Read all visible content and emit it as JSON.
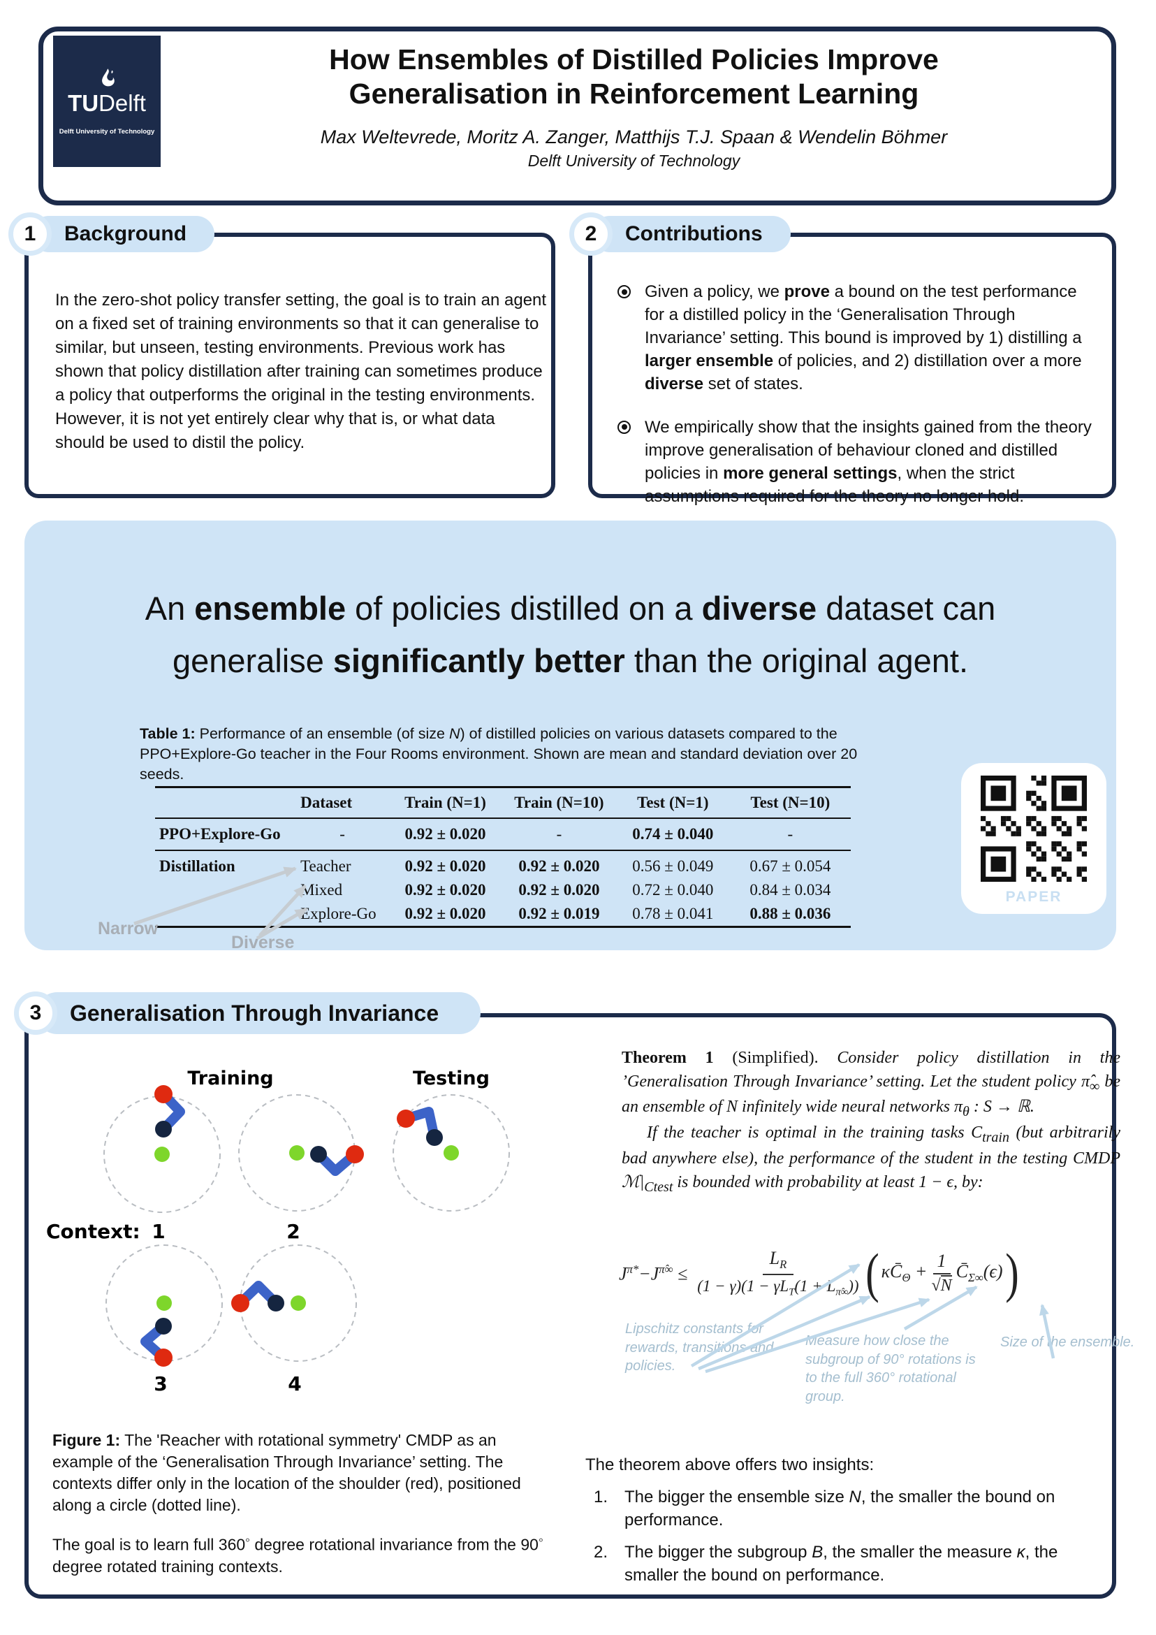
{
  "colors": {
    "brand_navy": "#1c2b4a",
    "highlight_blue": "#cfe4f6",
    "annotation_blue": "#a4becf",
    "arm_blue": "#3c63c8",
    "shoulder_red": "#df2a10",
    "tip_navy": "#152540",
    "target_green": "#7ed62b"
  },
  "icons": {
    "bullet": "fisheye-bullet",
    "logo_flame": "tu-delft-flame",
    "qr": "qr-code"
  },
  "header": {
    "logo_tu": "TU",
    "logo_delft": "Delft",
    "logo_sub": "Delft University of Technology",
    "title_line1": "How Ensembles of Distilled Policies Improve",
    "title_line2": "Generalisation in Reinforcement Learning",
    "authors": "Max Weltevrede, Moritz A. Zanger, Matthijs T.J. Spaan & Wendelin Böhmer",
    "affiliation": "Delft University of Technology"
  },
  "sections": {
    "background": {
      "number": "1",
      "title": "Background",
      "body": "In the zero-shot policy transfer setting, the goal is to train an agent on a fixed set of training environments so that it can generalise to similar, but unseen, testing environments. Previous work has shown that policy distillation after training can sometimes produce a policy that outperforms the original in the testing environments. However, it is not yet entirely clear why that is, or what data should be used to distil the policy."
    },
    "contributions": {
      "number": "2",
      "title": "Contributions",
      "bullets": [
        [
          {
            "t": "Given a policy, we "
          },
          {
            "t": "prove",
            "b": true
          },
          {
            "t": " a bound on the test performance for a distilled policy in the ‘Generalisation Through Invariance’ setting. This bound is improved by 1) distilling a "
          },
          {
            "t": "larger ensemble",
            "b": true
          },
          {
            "t": " of policies, and 2) distillation over a more "
          },
          {
            "t": "diverse",
            "b": true
          },
          {
            "t": " set of states."
          }
        ],
        [
          {
            "t": "We empirically show that the insights gained from the theory improve generalisation of behaviour cloned and distilled policies in "
          },
          {
            "t": "more general settings",
            "b": true
          },
          {
            "t": ", when the strict assumptions required for the theory no longer hold."
          }
        ]
      ]
    },
    "invariance": {
      "number": "3",
      "title": "Generalisation Through Invariance"
    }
  },
  "highlight": {
    "statement": [
      {
        "t": "An "
      },
      {
        "t": "ensemble",
        "b": true
      },
      {
        "t": " of policies distilled on a "
      },
      {
        "t": "diverse",
        "b": true
      },
      {
        "t": " dataset can"
      },
      {
        "br": true
      },
      {
        "t": "generalise "
      },
      {
        "t": "significantly better",
        "b": true
      },
      {
        "t": " than the original agent."
      }
    ],
    "table": {
      "caption": [
        {
          "t": "Table 1:",
          "b": true
        },
        {
          "t": " Performance of an ensemble (of size "
        },
        {
          "t": "N",
          "i": true
        },
        {
          "t": ") of distilled policies on various datasets compared to the PPO+Explore-Go teacher in the Four Rooms environment. Shown are mean and standard deviation over 20 seeds."
        }
      ],
      "headers": [
        "",
        "Dataset",
        "Train (N=1)",
        "Train (N=10)",
        "Test (N=1)",
        "Test (N=10)"
      ],
      "rows": [
        {
          "group": "PPO+Explore-Go",
          "dataset": "-",
          "c1": "0.92 ± 0.020",
          "c2": "-",
          "c3": "0.74 ± 0.040",
          "c4": "-"
        },
        {
          "group": "Distillation",
          "dataset": "Teacher",
          "c1": "0.92 ± 0.020",
          "c2": "0.92 ± 0.020",
          "c3": "0.56 ± 0.049",
          "c4": "0.67 ± 0.054"
        },
        {
          "group": "",
          "dataset": "Mixed",
          "c1": "0.92 ± 0.020",
          "c2": "0.92 ± 0.020",
          "c3": "0.72 ± 0.040",
          "c4": "0.84 ± 0.034"
        },
        {
          "group": "",
          "dataset": "Explore-Go",
          "c1": "0.92 ± 0.020",
          "c2": "0.92 ± 0.019",
          "c3": "0.78 ± 0.041",
          "c4": "0.88 ± 0.036"
        }
      ],
      "narrow_label": "Narrow",
      "diverse_label": "Diverse"
    },
    "qr_label": "PAPER"
  },
  "figure": {
    "training_label": "Training",
    "testing_label": "Testing",
    "context_label": "Context:",
    "context_numbers": [
      "1",
      "2",
      "3",
      "4"
    ],
    "caption": [
      {
        "t": "Figure 1:",
        "b": true
      },
      {
        "t": "  The 'Reacher with rotational symmetry' CMDP as an example of the ‘Generalisation Through Invariance’ setting. The contexts differ only in the location of the shoulder (red), positioned along a circle (dotted line)."
      }
    ],
    "goal": [
      {
        "t": "The goal is to learn full 360"
      },
      {
        "t": "◦",
        "sup": true
      },
      {
        "t": " degree rotational invariance from the 90"
      },
      {
        "t": "◦",
        "sup": true
      },
      {
        "t": " degree rotated training contexts."
      }
    ]
  },
  "theorem": {
    "para1": [
      {
        "t": "Theorem 1",
        "b": true,
        "r": true
      },
      {
        "t": " (Simplified).",
        "r": true
      },
      {
        "t": "  Consider policy distillation in the ’Generalisation Through Invariance’ setting. Let the student policy "
      },
      {
        "t": "π̂"
      },
      {
        "t": "∞",
        "sub": true
      },
      {
        "t": " be an ensemble of "
      },
      {
        "t": "N"
      },
      {
        "t": " infinitely wide neural networks "
      },
      {
        "t": "π"
      },
      {
        "t": "θ",
        "sub": true
      },
      {
        "t": " : "
      },
      {
        "t": "S"
      },
      {
        "t": " → ℝ."
      }
    ],
    "para2": [
      {
        "t": "If the teacher is optimal in the training tasks "
      },
      {
        "t": "C"
      },
      {
        "t": "train",
        "sub": true
      },
      {
        "t": " (but arbitrarily bad anywhere else), the performance of the student in the testing CMDP "
      },
      {
        "t": "ℳ|"
      },
      {
        "t": "C",
        "sub": true
      },
      {
        "t": "test",
        "sub": true
      },
      {
        "t": " is bounded with probability at least 1 − ϵ, by:"
      }
    ],
    "equation": {
      "j1": "J",
      "sup1": "π*",
      "minus": "−",
      "j2": "J",
      "sup2": "π̂∞",
      "leq": " ≤ ",
      "num_base": "L",
      "num_sub": "R",
      "den": [
        {
          "t": "(1 − γ)(1 − γL"
        },
        {
          "t": "T",
          "sub": true
        },
        {
          "t": "(1 + L"
        },
        {
          "t": "π̂∞",
          "sub": true
        },
        {
          "t": "))"
        }
      ],
      "open": "(",
      "close": ")",
      "term1": [
        {
          "t": "κC̄"
        },
        {
          "t": "Θ",
          "sub": true
        },
        {
          "t": " + "
        }
      ],
      "frac2_num": "1",
      "root": "√",
      "rootarg": "N",
      "term2": [
        {
          "t": "C̄"
        },
        {
          "t": "Σ∞",
          "sub": true
        },
        {
          "t": "(ϵ)"
        }
      ]
    },
    "annotations": {
      "lipschitz": "Lipschitz constants for rewards, transitions and policies.",
      "kappa": "Measure how close the subgroup of 90° rotations is to the full 360° rotational group.",
      "ensemble": "Size of the ensemble."
    }
  },
  "insights": {
    "intro": "The theorem above offers two insights:",
    "numbers": [
      "1.",
      "2."
    ],
    "items": [
      [
        {
          "t": "The bigger the ensemble size "
        },
        {
          "t": "N",
          "i": true
        },
        {
          "t": ", the smaller the bound on performance."
        }
      ],
      [
        {
          "t": "The bigger the subgroup "
        },
        {
          "t": "B",
          "i": true
        },
        {
          "t": ", the smaller the measure "
        },
        {
          "t": "κ",
          "i": true
        },
        {
          "t": ", the smaller the bound on performance."
        }
      ]
    ]
  }
}
